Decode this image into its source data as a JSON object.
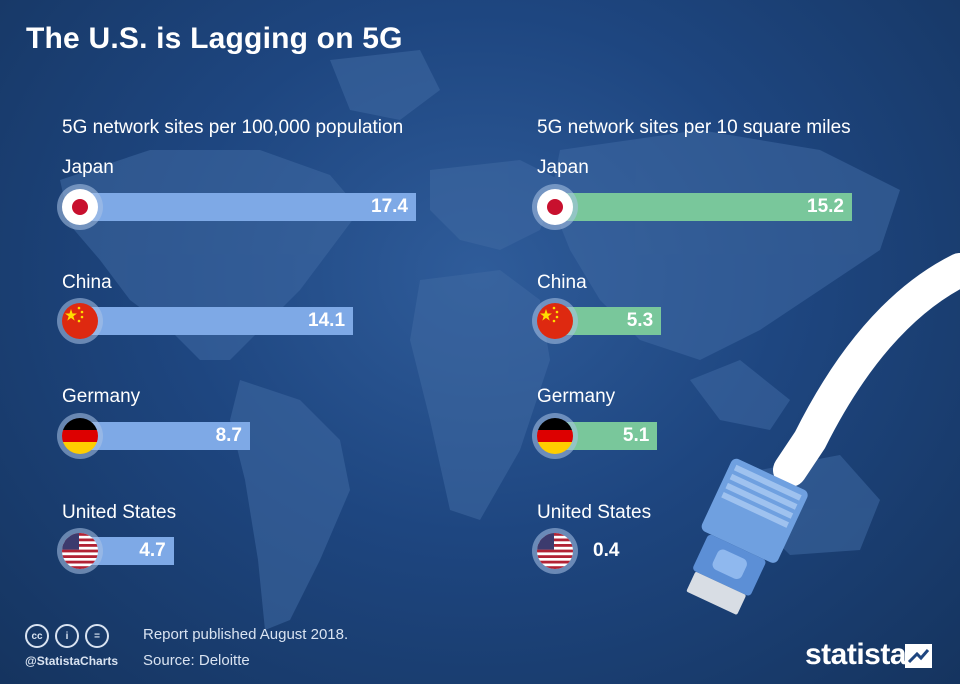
{
  "title": "The U.S. is Lagging on 5G",
  "chart_data": [
    {
      "type": "bar",
      "orientation": "horizontal",
      "title": "5G network sites per 100,000 population",
      "categories": [
        "Japan",
        "China",
        "Germany",
        "United States"
      ],
      "values": [
        17.4,
        14.1,
        8.7,
        4.7
      ],
      "value_labels": [
        "17.4",
        "14.1",
        "8.7",
        "4.7"
      ],
      "color": "#7ea9e6"
    },
    {
      "type": "bar",
      "orientation": "horizontal",
      "title": "5G network sites per 10 square miles",
      "categories": [
        "Japan",
        "China",
        "Germany",
        "United States"
      ],
      "values": [
        15.2,
        5.3,
        5.1,
        0.4
      ],
      "value_labels": [
        "15.2",
        "5.3",
        "5.1",
        "0.4"
      ],
      "color": "#79c79b"
    }
  ],
  "flags": [
    "japan-flag-icon",
    "china-flag-icon",
    "germany-flag-icon",
    "usa-flag-icon"
  ],
  "footer": {
    "handle": "@StatistaCharts",
    "published": "Report published August 2018.",
    "source": "Source: Deloitte",
    "brand": "statista",
    "license_icons": [
      "cc-icon",
      "person-icon",
      "equals-icon"
    ],
    "license_labels": [
      "cc",
      "i",
      "="
    ]
  },
  "colors": {
    "background": "#1e4680",
    "bar_left": "#7ea9e6",
    "bar_right": "#79c79b"
  }
}
